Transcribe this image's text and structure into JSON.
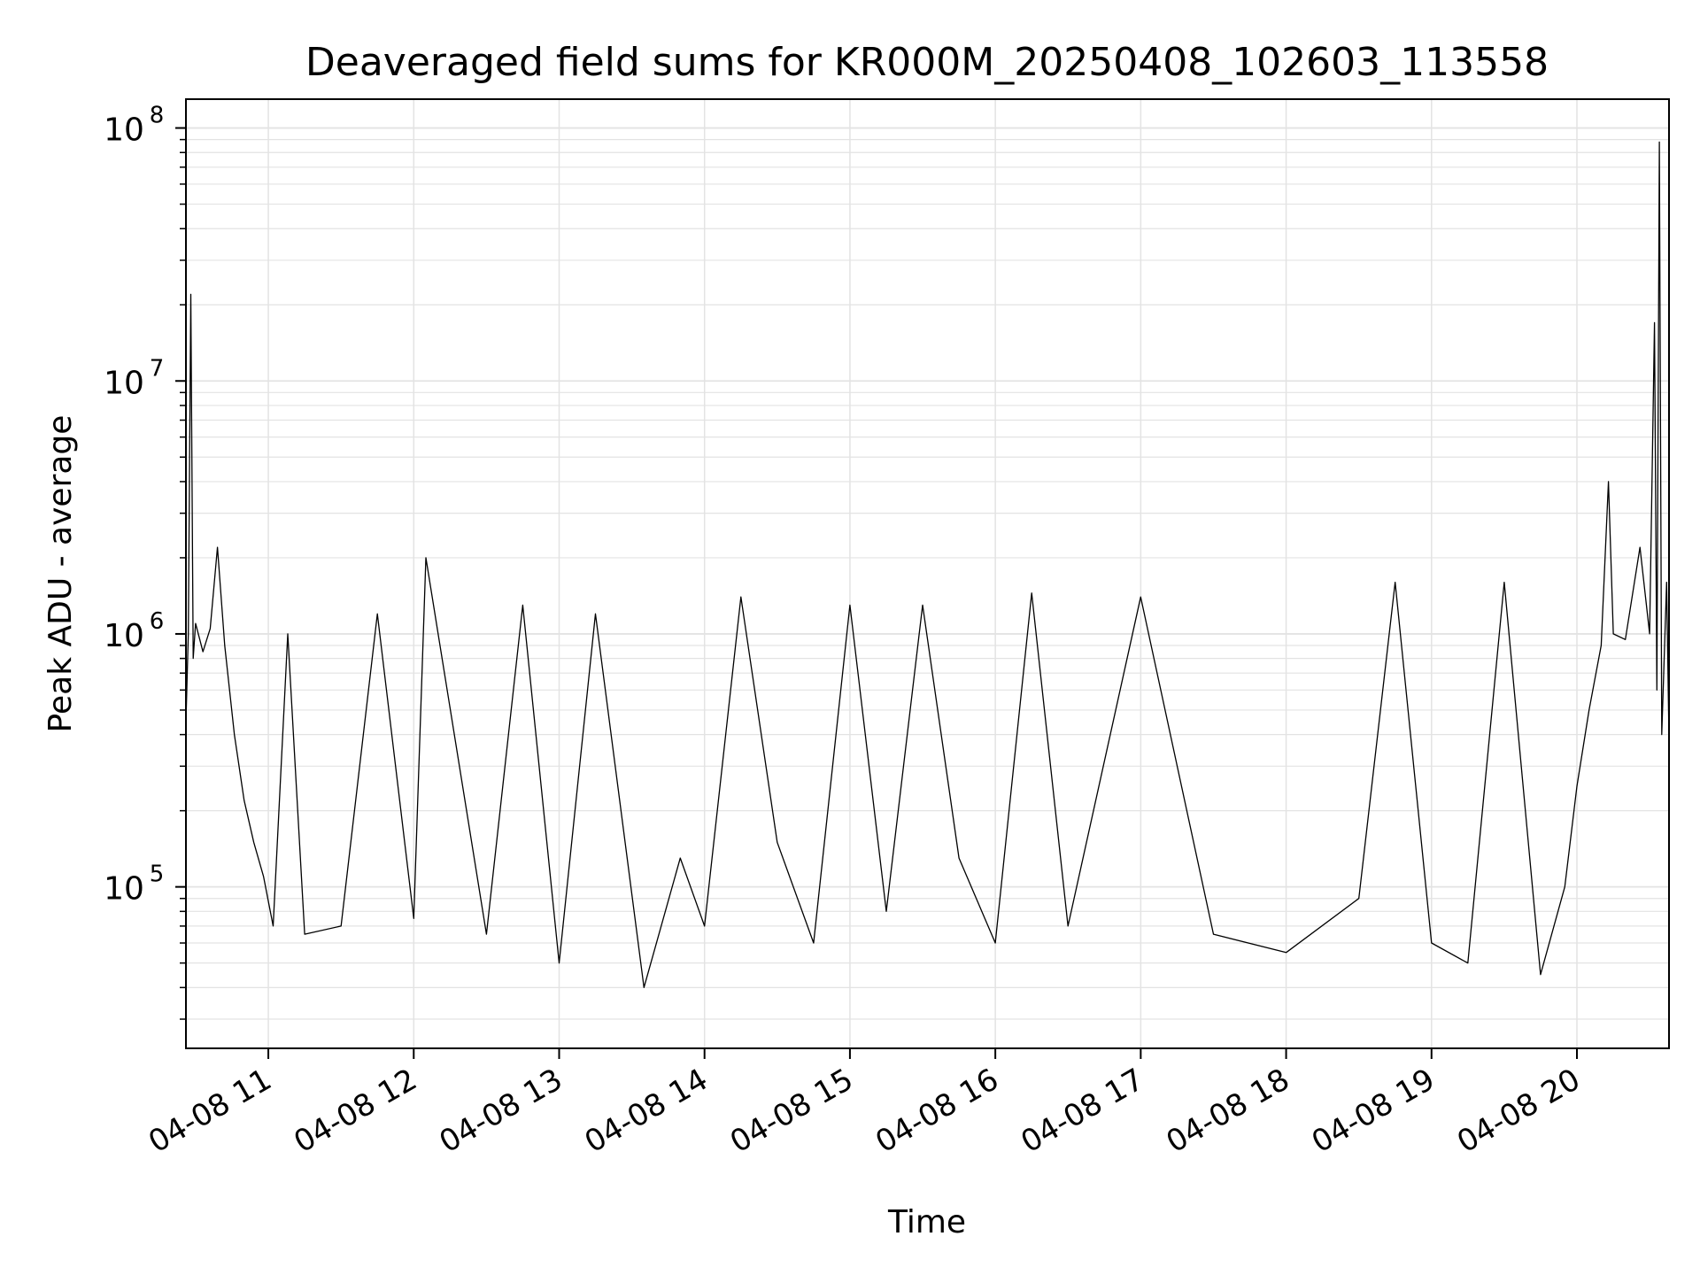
{
  "chart_data": {
    "type": "line",
    "title": "Deaveraged field sums for KR000M_20250408_102603_113558",
    "xlabel": "Time",
    "ylabel": "Peak ADU - average",
    "yscale": "log",
    "ylim": [
      23000,
      130000000
    ],
    "xlim": [
      "04-08 10:26",
      "04-08 20:38"
    ],
    "x_ticks": [
      {
        "t": 11,
        "label": "04-08 11"
      },
      {
        "t": 12,
        "label": "04-08 12"
      },
      {
        "t": 13,
        "label": "04-08 13"
      },
      {
        "t": 14,
        "label": "04-08 14"
      },
      {
        "t": 15,
        "label": "04-08 15"
      },
      {
        "t": 16,
        "label": "04-08 16"
      },
      {
        "t": 17,
        "label": "04-08 17"
      },
      {
        "t": 18,
        "label": "04-08 18"
      },
      {
        "t": 19,
        "label": "04-08 19"
      },
      {
        "t": 20,
        "label": "04-08 20"
      }
    ],
    "y_ticks": [
      {
        "exp": 5,
        "base": "10",
        "sup": "5"
      },
      {
        "exp": 6,
        "base": "10",
        "sup": "6"
      },
      {
        "exp": 7,
        "base": "10",
        "sup": "7"
      },
      {
        "exp": 8,
        "base": "10",
        "sup": "8"
      }
    ],
    "grid": true,
    "line_color": "#000000",
    "grid_color": "#e3e3e3",
    "series": [
      {
        "points": [
          [
            "04-08 10:26",
            450000
          ],
          [
            "04-08 10:27",
            1000000
          ],
          [
            "04-08 10:28",
            22000000
          ],
          [
            "04-08 10:29",
            800000
          ],
          [
            "04-08 10:30",
            1100000
          ],
          [
            "04-08 10:33",
            850000
          ],
          [
            "04-08 10:36",
            1050000
          ],
          [
            "04-08 10:39",
            2200000
          ],
          [
            "04-08 10:42",
            900000
          ],
          [
            "04-08 10:46",
            400000
          ],
          [
            "04-08 10:50",
            220000
          ],
          [
            "04-08 10:54",
            150000
          ],
          [
            "04-08 10:58",
            110000
          ],
          [
            "04-08 11:02",
            70000
          ],
          [
            "04-08 11:08",
            1000000
          ],
          [
            "04-08 11:15",
            65000
          ],
          [
            "04-08 11:30",
            70000
          ],
          [
            "04-08 11:45",
            1200000
          ],
          [
            "04-08 12:00",
            75000
          ],
          [
            "04-08 12:05",
            2000000
          ],
          [
            "04-08 12:30",
            65000
          ],
          [
            "04-08 12:45",
            1300000
          ],
          [
            "04-08 13:00",
            50000
          ],
          [
            "04-08 13:15",
            1200000
          ],
          [
            "04-08 13:35",
            40000
          ],
          [
            "04-08 13:50",
            130000
          ],
          [
            "04-08 14:00",
            70000
          ],
          [
            "04-08 14:15",
            1400000
          ],
          [
            "04-08 14:30",
            150000
          ],
          [
            "04-08 14:45",
            60000
          ],
          [
            "04-08 15:00",
            1300000
          ],
          [
            "04-08 15:15",
            80000
          ],
          [
            "04-08 15:30",
            1300000
          ],
          [
            "04-08 15:45",
            130000
          ],
          [
            "04-08 16:00",
            60000
          ],
          [
            "04-08 16:15",
            1450000
          ],
          [
            "04-08 16:30",
            70000
          ],
          [
            "04-08 17:00",
            1400000
          ],
          [
            "04-08 17:30",
            65000
          ],
          [
            "04-08 18:00",
            55000
          ],
          [
            "04-08 18:30",
            90000
          ],
          [
            "04-08 18:45",
            1600000
          ],
          [
            "04-08 19:00",
            60000
          ],
          [
            "04-08 19:15",
            50000
          ],
          [
            "04-08 19:30",
            1600000
          ],
          [
            "04-08 19:45",
            45000
          ],
          [
            "04-08 19:55",
            100000
          ],
          [
            "04-08 20:00",
            250000
          ],
          [
            "04-08 20:05",
            500000
          ],
          [
            "04-08 20:10",
            900000
          ],
          [
            "04-08 20:13",
            4000000
          ],
          [
            "04-08 20:15",
            1000000
          ],
          [
            "04-08 20:20",
            950000
          ],
          [
            "04-08 20:26",
            2200000
          ],
          [
            "04-08 20:30",
            1000000
          ],
          [
            "04-08 20:32",
            17000000
          ],
          [
            "04-08 20:33",
            600000
          ],
          [
            "04-08 20:34",
            88000000
          ],
          [
            "04-08 20:35",
            400000
          ],
          [
            "04-08 20:37",
            1600000
          ],
          [
            "04-08 20:38",
            380000
          ]
        ]
      }
    ]
  }
}
